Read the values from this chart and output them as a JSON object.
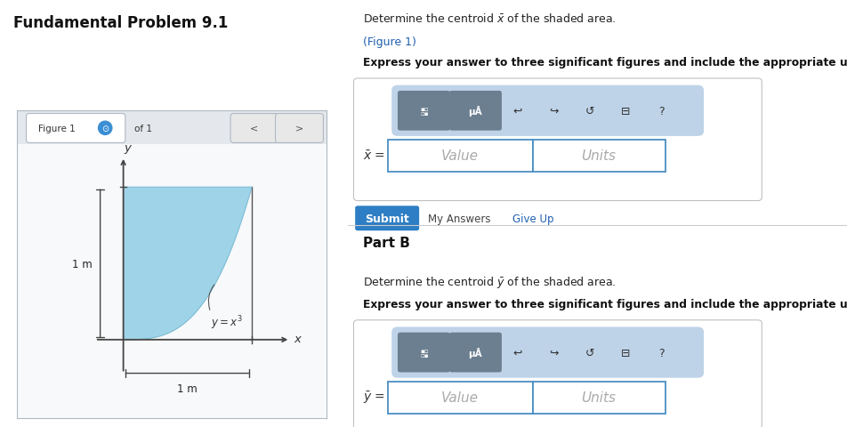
{
  "title_left": "Fundamental Problem 9.1",
  "fig_label": "Figure 1",
  "of_label": "of 1",
  "left_bg_color": "#dde8f0",
  "figure_panel_bg": "#f8f9fb",
  "shaded_color": "#9fd4e8",
  "shaded_edge_color": "#7abcd4",
  "right_bg_color": "#ffffff",
  "part_a_desc": "Determine the centroid $\\bar{x}$ of the shaded area.",
  "part_a_link": "(Figure 1)",
  "bold_text": "Express your answer to three significant figures and include the appropriate units.",
  "value_placeholder": "Value",
  "units_placeholder": "Units",
  "submit_text": "Submit",
  "my_answers_text": "My Answers",
  "give_up_text": "Give Up",
  "part_b_header": "Part B",
  "part_b_desc": "Determine the centroid $\\bar{y}$ of the shaded area.",
  "toolbar_bg": "#bed3e8",
  "toolbar_icon_dark": "#6b7f90",
  "input_border": "#4a8fc4",
  "submit_btn_color": "#2d7ec4",
  "divider_color": "#cccccc",
  "nav_btn_color": "#e8e8e8",
  "header_bar_color": "#e4e8ec",
  "outer_box_border": "#c8c8c8",
  "dim_label": "1 m",
  "curve_label": "y = x³"
}
